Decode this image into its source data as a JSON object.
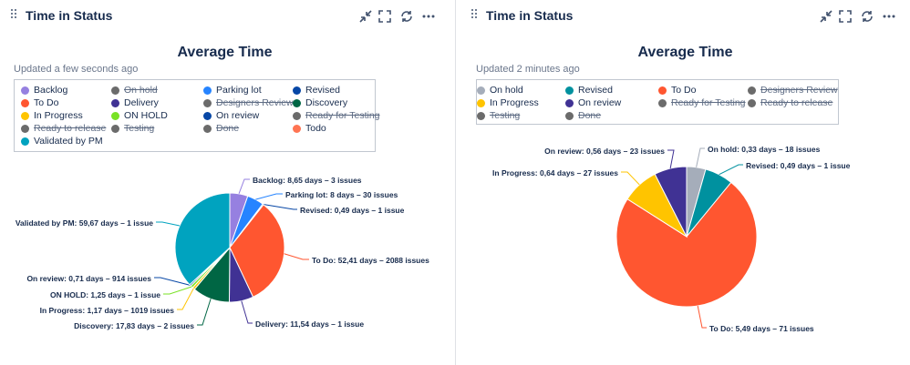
{
  "gadgets": [
    {
      "title": "Time in Status",
      "chart_title": "Average Time",
      "updated": "Updated a few seconds ago",
      "legend": [
        {
          "label": "Backlog",
          "color": "#9680e0",
          "hidden": false
        },
        {
          "label": "On hold",
          "color": "#6b6b6b",
          "hidden": true
        },
        {
          "label": "Parking lot",
          "color": "#2684ff",
          "hidden": false
        },
        {
          "label": "Revised",
          "color": "#0747a6",
          "hidden": false
        },
        {
          "label": "To Do",
          "color": "#ff5630",
          "hidden": false
        },
        {
          "label": "Delivery",
          "color": "#403294",
          "hidden": false
        },
        {
          "label": "Designers Review",
          "color": "#6b6b6b",
          "hidden": true
        },
        {
          "label": "Discovery",
          "color": "#006644",
          "hidden": false
        },
        {
          "label": "In Progress",
          "color": "#ffc400",
          "hidden": false
        },
        {
          "label": "ON HOLD",
          "color": "#79e226",
          "hidden": false
        },
        {
          "label": "On review",
          "color": "#0747a6",
          "hidden": false
        },
        {
          "label": "Ready for Testing",
          "color": "#6b6b6b",
          "hidden": true
        },
        {
          "label": "Ready to release",
          "color": "#6b6b6b",
          "hidden": true
        },
        {
          "label": "Testing",
          "color": "#6b6b6b",
          "hidden": true
        },
        {
          "label": "Done",
          "color": "#6b6b6b",
          "hidden": true
        },
        {
          "label": "Todo",
          "color": "#ff7452",
          "hidden": false
        },
        {
          "label": "Validated by PM",
          "color": "#00a3bf",
          "hidden": false
        }
      ],
      "chart_data": {
        "type": "pie",
        "title": "Average Time",
        "slices": [
          {
            "name": "Backlog",
            "value": 8.65,
            "label": "Backlog: 8,65 days – 3 issues",
            "color": "#9680e0"
          },
          {
            "name": "Parking lot",
            "value": 8,
            "label": "Parking lot: 8 days – 30 issues",
            "color": "#2684ff"
          },
          {
            "name": "Revised",
            "value": 0.49,
            "label": "Revised: 0,49 days – 1 issue",
            "color": "#0747a6"
          },
          {
            "name": "To Do",
            "value": 52.41,
            "label": "To Do: 52,41 days – 2088 issues",
            "color": "#ff5630"
          },
          {
            "name": "Delivery",
            "value": 11.54,
            "label": "Delivery: 11,54 days – 1 issue",
            "color": "#403294"
          },
          {
            "name": "Discovery",
            "value": 17.83,
            "label": "Discovery: 17,83 days – 2 issues",
            "color": "#006644"
          },
          {
            "name": "In Progress",
            "value": 1.17,
            "label": "In Progress: 1,17 days – 1019 issues",
            "color": "#ffc400"
          },
          {
            "name": "ON HOLD",
            "value": 1.25,
            "label": "ON HOLD: 1,25 days – 1 issue",
            "color": "#79e226"
          },
          {
            "name": "On review",
            "value": 0.71,
            "label": "On review: 0,71 days – 914 issues",
            "color": "#0747a6"
          },
          {
            "name": "Validated by PM",
            "value": 59.67,
            "label": "Validated by PM: 59,67 days – 1 issue",
            "color": "#00a3bf"
          }
        ]
      }
    },
    {
      "title": "Time in Status",
      "chart_title": "Average Time",
      "updated": "Updated 2 minutes ago",
      "legend": [
        {
          "label": "On hold",
          "color": "#a5adba",
          "hidden": false
        },
        {
          "label": "Revised",
          "color": "#00919f",
          "hidden": false
        },
        {
          "label": "To Do",
          "color": "#ff5630",
          "hidden": false
        },
        {
          "label": "Designers Review",
          "color": "#6b6b6b",
          "hidden": true
        },
        {
          "label": "In Progress",
          "color": "#ffc400",
          "hidden": false
        },
        {
          "label": "On review",
          "color": "#403294",
          "hidden": false
        },
        {
          "label": "Ready for Testing",
          "color": "#6b6b6b",
          "hidden": true
        },
        {
          "label": "Ready to release",
          "color": "#6b6b6b",
          "hidden": true
        },
        {
          "label": "Testing",
          "color": "#6b6b6b",
          "hidden": true
        },
        {
          "label": "Done",
          "color": "#6b6b6b",
          "hidden": true
        }
      ],
      "chart_data": {
        "type": "pie",
        "title": "Average Time",
        "slices": [
          {
            "name": "On hold",
            "value": 0.33,
            "label": "On hold: 0,33 days – 18 issues",
            "color": "#a5adba"
          },
          {
            "name": "Revised",
            "value": 0.49,
            "label": "Revised: 0,49 days – 1 issue",
            "color": "#00919f"
          },
          {
            "name": "To Do",
            "value": 5.49,
            "label": "To Do: 5,49 days – 71 issues",
            "color": "#ff5630"
          },
          {
            "name": "In Progress",
            "value": 0.64,
            "label": "In Progress: 0,64 days – 27 issues",
            "color": "#ffc400"
          },
          {
            "name": "On review",
            "value": 0.56,
            "label": "On review: 0,56 days – 23 issues",
            "color": "#403294"
          }
        ]
      }
    }
  ]
}
